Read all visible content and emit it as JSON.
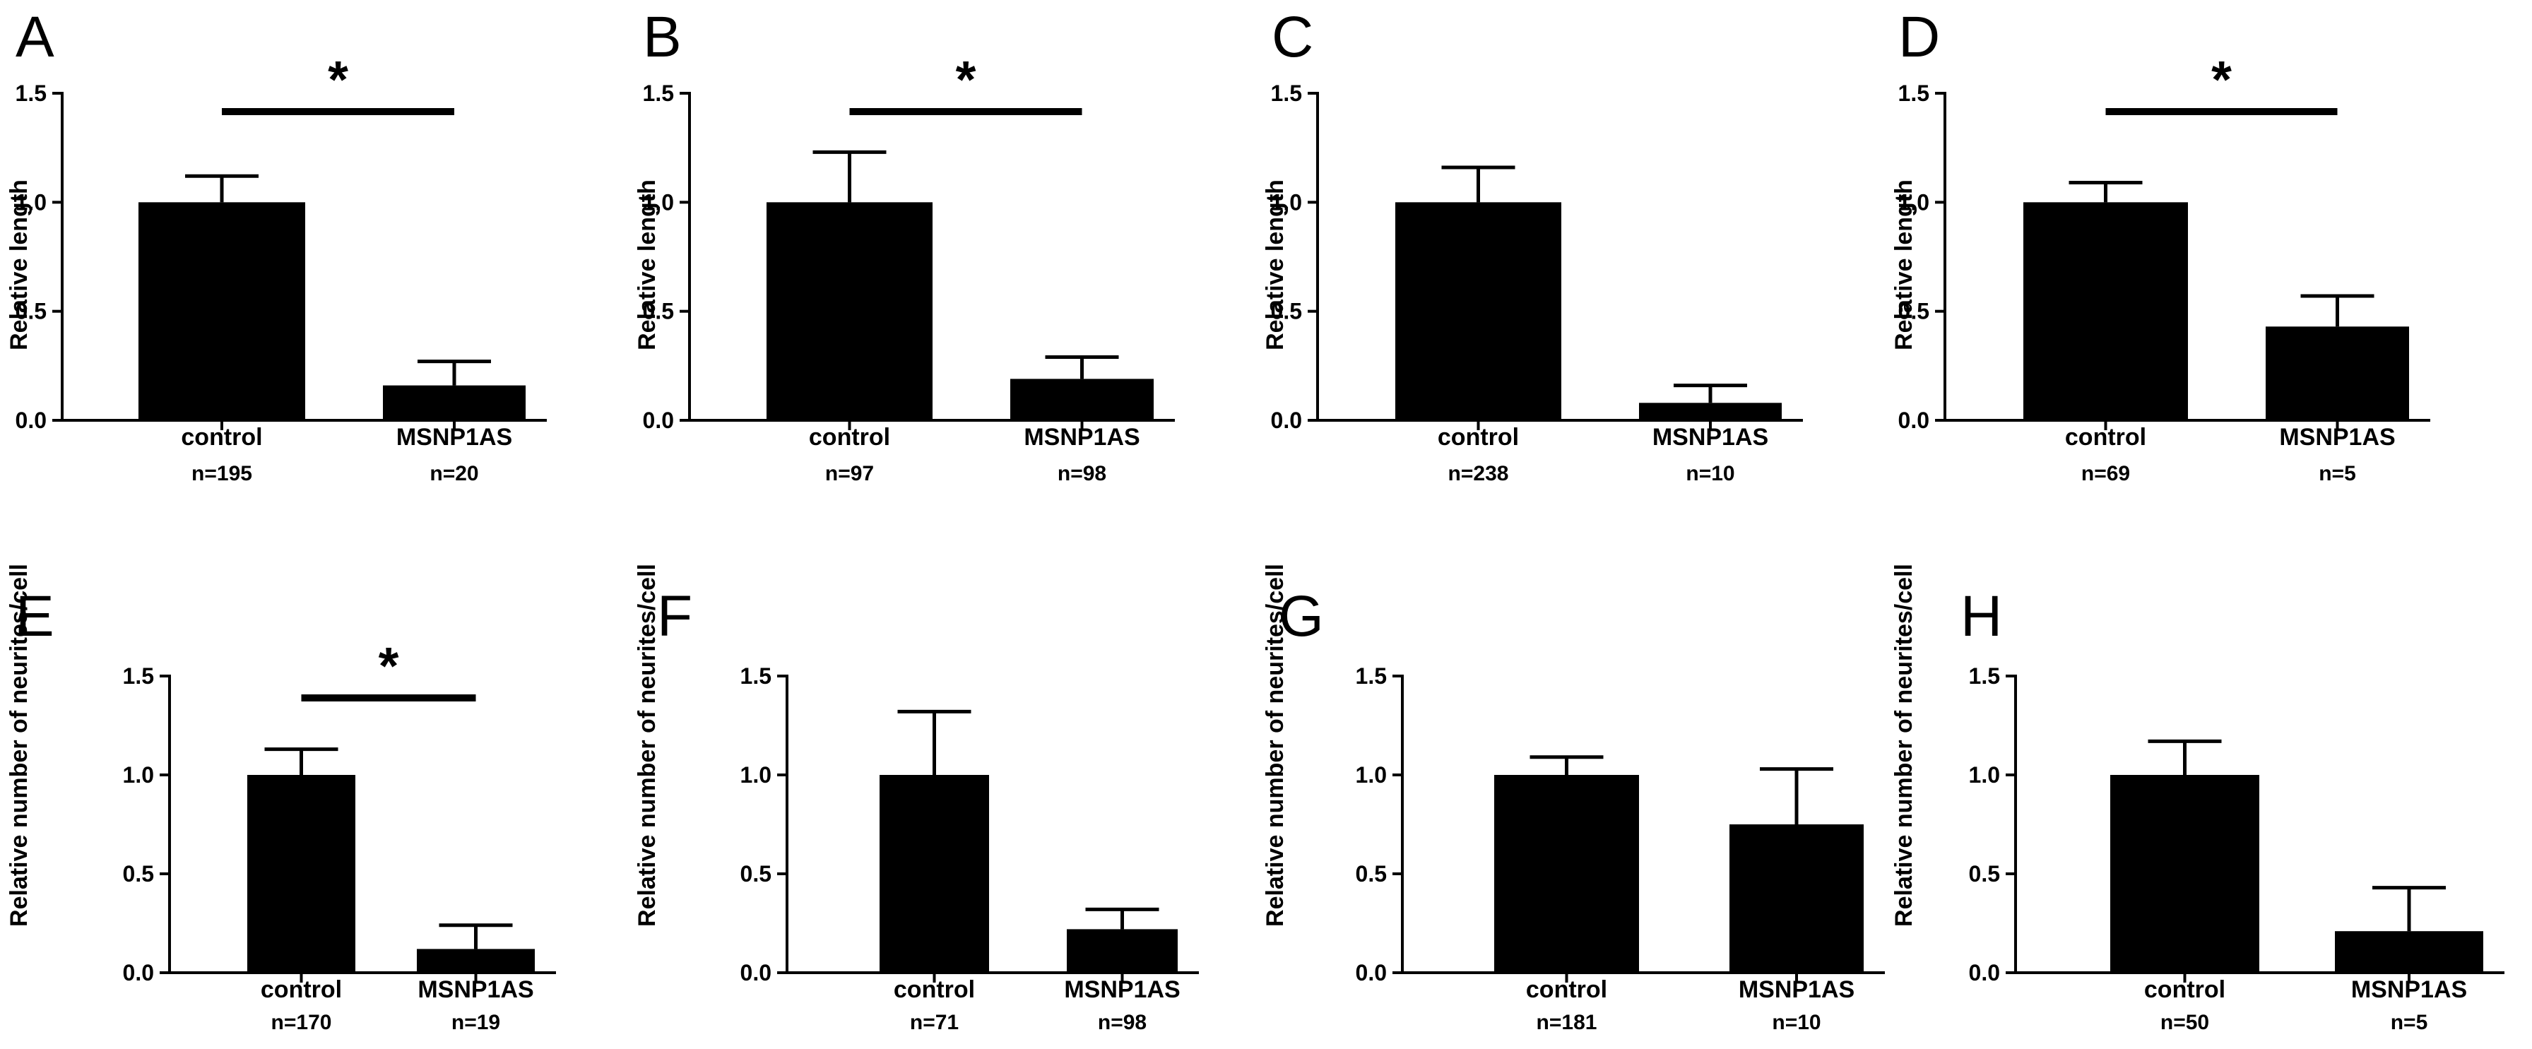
{
  "figure": {
    "background": "#ffffff",
    "bar_color": "#000000"
  },
  "chart_data": [
    {
      "panel": "A",
      "type": "bar",
      "ylabel": "Relative length",
      "ylim": [
        0,
        1.5
      ],
      "yticks": [
        "0.0",
        "0.5",
        "1.0",
        "1.5"
      ],
      "categories": [
        "control",
        "MSNP1AS"
      ],
      "values": [
        1.0,
        0.16
      ],
      "errors": [
        0.12,
        0.11
      ],
      "n_labels": [
        "n=195",
        "n=20"
      ],
      "significance": {
        "shown": true,
        "label": "*"
      }
    },
    {
      "panel": "B",
      "type": "bar",
      "ylabel": "Relative length",
      "ylim": [
        0,
        1.5
      ],
      "yticks": [
        "0.0",
        "0.5",
        "1.0",
        "1.5"
      ],
      "categories": [
        "control",
        "MSNP1AS"
      ],
      "values": [
        1.0,
        0.19
      ],
      "errors": [
        0.23,
        0.1
      ],
      "n_labels": [
        "n=97",
        "n=98"
      ],
      "significance": {
        "shown": true,
        "label": "*"
      }
    },
    {
      "panel": "C",
      "type": "bar",
      "ylabel": "Relative length",
      "ylim": [
        0,
        1.5
      ],
      "yticks": [
        "0.0",
        "0.5",
        "1.0",
        "1.5"
      ],
      "categories": [
        "control",
        "MSNP1AS"
      ],
      "values": [
        1.0,
        0.08
      ],
      "errors": [
        0.16,
        0.08
      ],
      "n_labels": [
        "n=238",
        "n=10"
      ],
      "significance": {
        "shown": false,
        "label": ""
      }
    },
    {
      "panel": "D",
      "type": "bar",
      "ylabel": "Relative length",
      "ylim": [
        0,
        1.5
      ],
      "yticks": [
        "0.0",
        "0.5",
        "1.0",
        "1.5"
      ],
      "categories": [
        "control",
        "MSNP1AS"
      ],
      "values": [
        1.0,
        0.43
      ],
      "errors": [
        0.09,
        0.14
      ],
      "n_labels": [
        "n=69",
        "n=5"
      ],
      "significance": {
        "shown": true,
        "label": "*"
      }
    },
    {
      "panel": "E",
      "type": "bar",
      "ylabel": "Relative number of neurites/cell",
      "ylim": [
        0,
        1.5
      ],
      "yticks": [
        "0.0",
        "0.5",
        "1.0",
        "1.5"
      ],
      "categories": [
        "control",
        "MSNP1AS"
      ],
      "values": [
        1.0,
        0.12
      ],
      "errors": [
        0.13,
        0.12
      ],
      "n_labels": [
        "n=170",
        "n=19"
      ],
      "significance": {
        "shown": true,
        "label": "*"
      }
    },
    {
      "panel": "F",
      "type": "bar",
      "ylabel": "Relative number of neurites/cell",
      "ylim": [
        0,
        1.5
      ],
      "yticks": [
        "0.0",
        "0.5",
        "1.0",
        "1.5"
      ],
      "categories": [
        "control",
        "MSNP1AS"
      ],
      "values": [
        1.0,
        0.22
      ],
      "errors": [
        0.32,
        0.1
      ],
      "n_labels": [
        "n=71",
        "n=98"
      ],
      "significance": {
        "shown": false,
        "label": ""
      }
    },
    {
      "panel": "G",
      "type": "bar",
      "ylabel": "Relative number of neurites/cell",
      "ylim": [
        0,
        1.5
      ],
      "yticks": [
        "0.0",
        "0.5",
        "1.0",
        "1.5"
      ],
      "categories": [
        "control",
        "MSNP1AS"
      ],
      "values": [
        1.0,
        0.75
      ],
      "errors": [
        0.09,
        0.28
      ],
      "n_labels": [
        "n=181",
        "n=10"
      ],
      "significance": {
        "shown": false,
        "label": ""
      }
    },
    {
      "panel": "H",
      "type": "bar",
      "ylabel": "Relative number of neurites/cell",
      "ylim": [
        0,
        1.5
      ],
      "yticks": [
        "0.0",
        "0.5",
        "1.0",
        "1.5"
      ],
      "categories": [
        "control",
        "MSNP1AS"
      ],
      "values": [
        1.0,
        0.21
      ],
      "errors": [
        0.17,
        0.22
      ],
      "n_labels": [
        "n=50",
        "n=5"
      ],
      "significance": {
        "shown": false,
        "label": ""
      }
    }
  ]
}
